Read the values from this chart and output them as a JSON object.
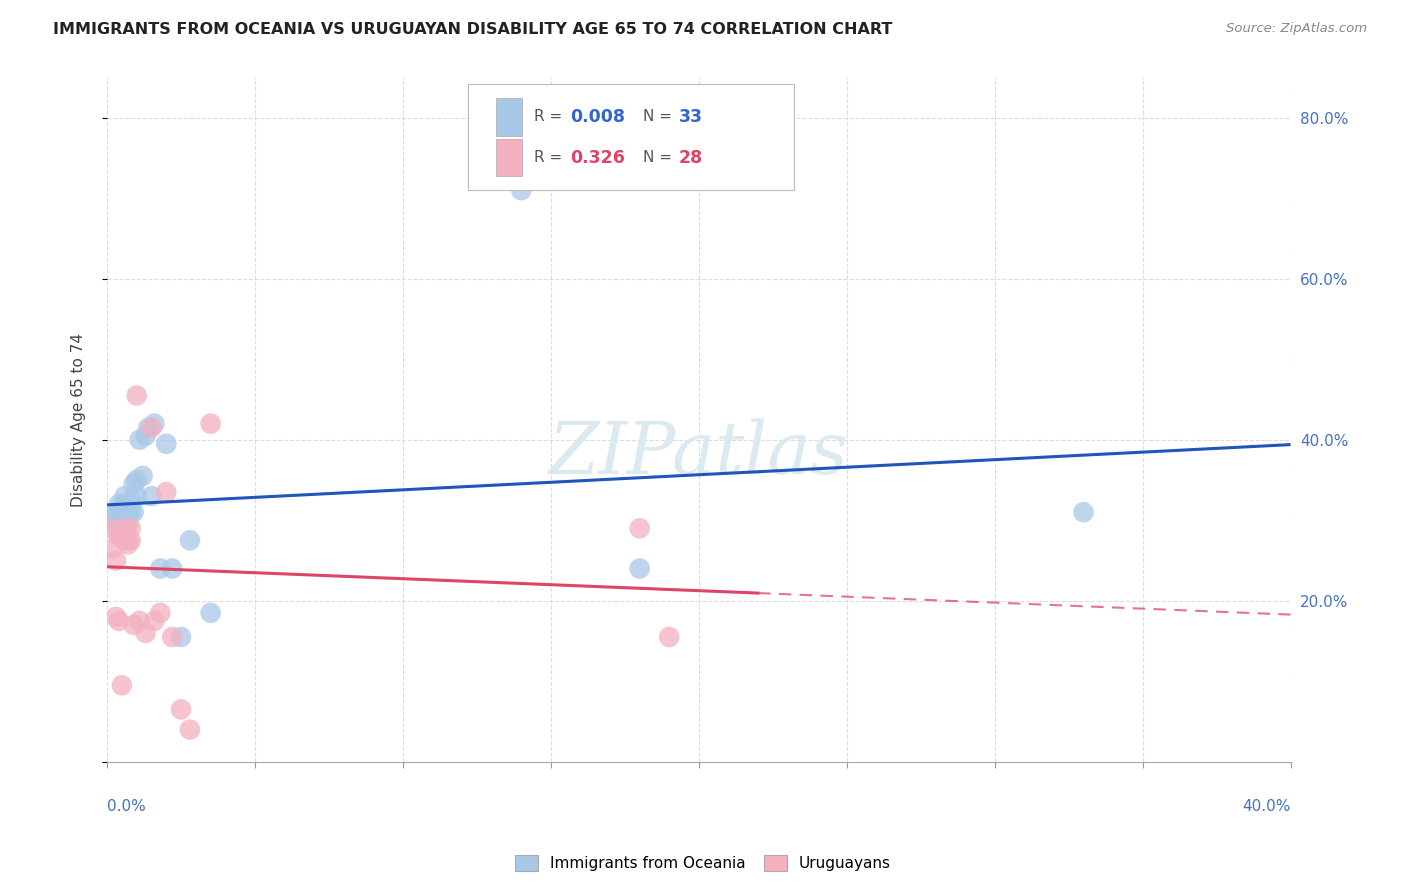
{
  "title": "IMMIGRANTS FROM OCEANIA VS URUGUAYAN DISABILITY AGE 65 TO 74 CORRELATION CHART",
  "source": "Source: ZipAtlas.com",
  "ylabel": "Disability Age 65 to 74",
  "legend1_label": "Immigrants from Oceania",
  "legend2_label": "Uruguayans",
  "legend1_R": "0.008",
  "legend1_N": "33",
  "legend2_R": "0.326",
  "legend2_N": "28",
  "blue_color": "#a8c8e8",
  "pink_color": "#f4b0c0",
  "blue_line_color": "#2255bb",
  "pink_line_color": "#dd4466",
  "grid_color": "#dddddd",
  "xlim": [
    0.0,
    0.4
  ],
  "ylim": [
    0.0,
    0.85
  ],
  "blue_scatter_x": [
    0.002,
    0.003,
    0.003,
    0.004,
    0.004,
    0.005,
    0.005,
    0.005,
    0.006,
    0.006,
    0.007,
    0.007,
    0.008,
    0.008,
    0.009,
    0.009,
    0.01,
    0.01,
    0.011,
    0.012,
    0.013,
    0.014,
    0.015,
    0.016,
    0.018,
    0.02,
    0.022,
    0.025,
    0.028,
    0.035,
    0.14,
    0.18,
    0.33
  ],
  "blue_scatter_y": [
    0.305,
    0.31,
    0.295,
    0.3,
    0.32,
    0.295,
    0.31,
    0.285,
    0.32,
    0.33,
    0.305,
    0.295,
    0.31,
    0.325,
    0.31,
    0.345,
    0.33,
    0.35,
    0.4,
    0.355,
    0.405,
    0.415,
    0.33,
    0.42,
    0.24,
    0.395,
    0.24,
    0.155,
    0.275,
    0.185,
    0.71,
    0.24,
    0.31
  ],
  "pink_scatter_x": [
    0.001,
    0.002,
    0.003,
    0.003,
    0.004,
    0.004,
    0.005,
    0.005,
    0.006,
    0.006,
    0.007,
    0.007,
    0.008,
    0.008,
    0.009,
    0.01,
    0.011,
    0.013,
    0.015,
    0.016,
    0.018,
    0.02,
    0.022,
    0.025,
    0.028,
    0.18,
    0.19,
    0.035
  ],
  "pink_scatter_y": [
    0.29,
    0.265,
    0.25,
    0.18,
    0.28,
    0.175,
    0.28,
    0.095,
    0.275,
    0.29,
    0.275,
    0.27,
    0.275,
    0.29,
    0.17,
    0.455,
    0.175,
    0.16,
    0.415,
    0.175,
    0.185,
    0.335,
    0.155,
    0.065,
    0.04,
    0.29,
    0.155,
    0.42
  ],
  "yticks": [
    0.0,
    0.2,
    0.4,
    0.6,
    0.8
  ],
  "xtick_label_left": "0.0%",
  "xtick_label_right": "40.0%"
}
